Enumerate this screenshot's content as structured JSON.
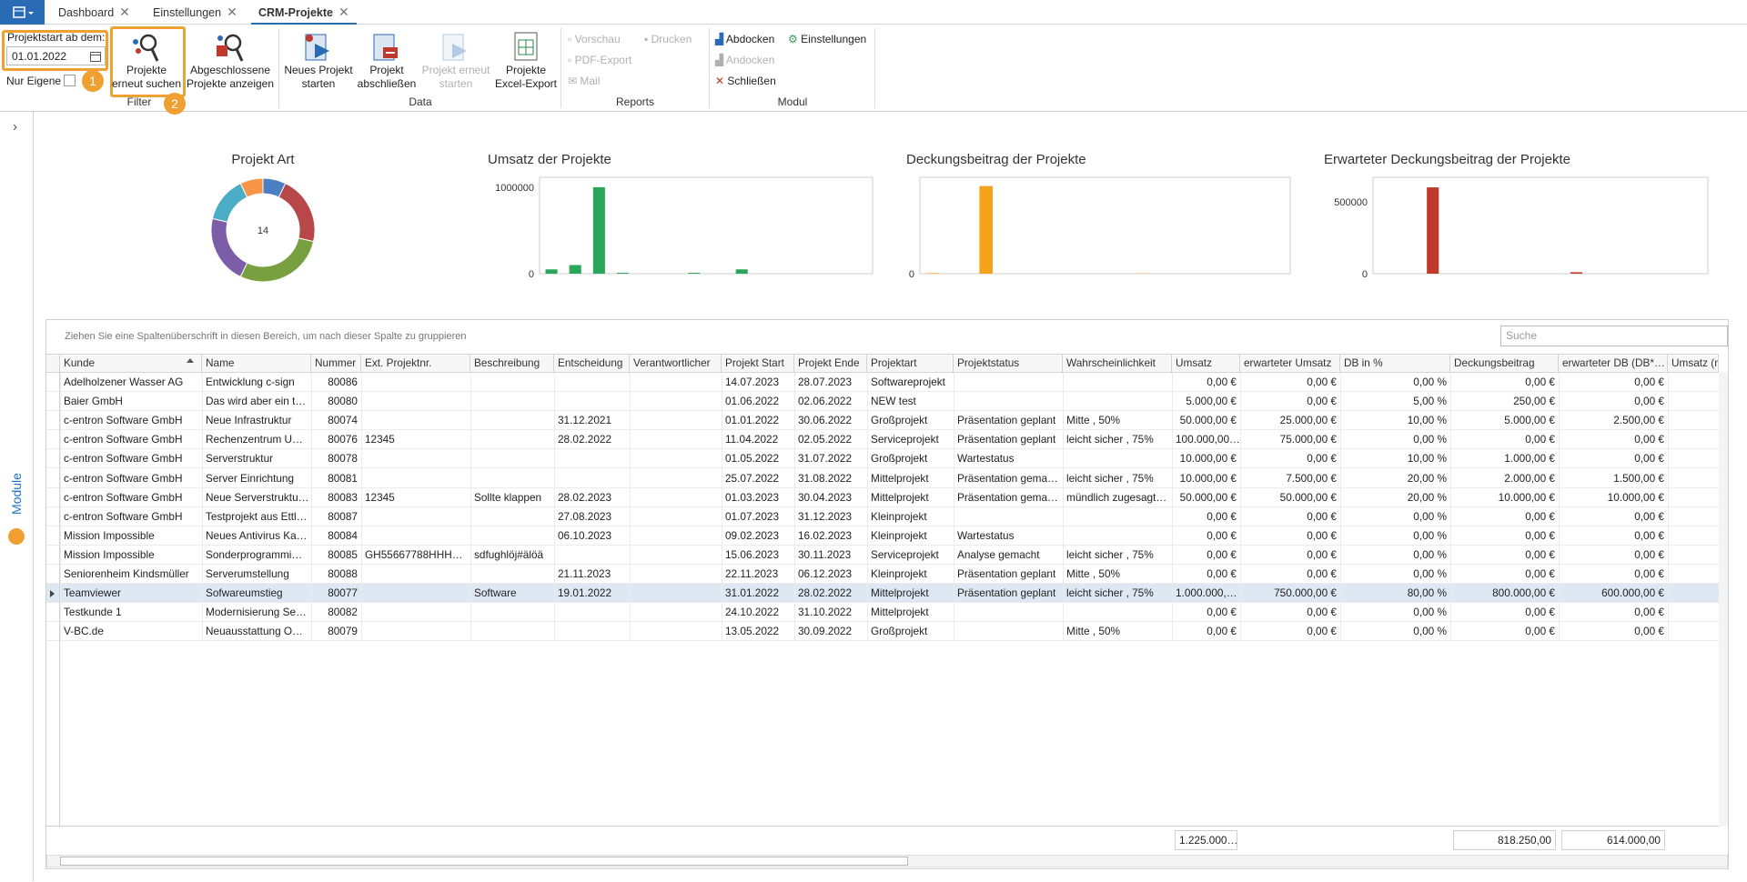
{
  "tabs": [
    "Dashboard",
    "Einstellungen",
    "CRM-Projekte"
  ],
  "active_tab": 2,
  "ribbon": {
    "filter": {
      "title": "Filter",
      "date_label": "Projektstart ab dem:",
      "date": "01.01.2022",
      "only_own": "Nur Eigene",
      "search_button": [
        "Projekte",
        "erneut suchen"
      ],
      "closed_button": [
        "Abgeschlossene",
        "Projekte anzeigen"
      ],
      "callouts": [
        1,
        2
      ]
    },
    "data": {
      "title": "Data",
      "buttons": [
        [
          "Neues Projekt",
          "starten"
        ],
        [
          "Projekt",
          "abschließen"
        ],
        [
          "Projekt erneut",
          "starten"
        ],
        [
          "Projekte",
          "Excel-Export"
        ]
      ]
    },
    "reports": {
      "title": "Reports",
      "items": [
        "Vorschau",
        "Drucken",
        "PDF-Export",
        "Mail"
      ]
    },
    "modul": {
      "title": "Modul",
      "items": [
        "Abdocken",
        "Einstellungen",
        "Andocken",
        "Schließen"
      ]
    }
  },
  "sidebar": {
    "label": "Module"
  },
  "charts": [
    {
      "type": "pie",
      "title": "Projekt Art",
      "center_text": 14,
      "values": [
        1,
        3,
        4,
        3,
        2,
        1
      ],
      "colors": [
        "#4a7fc1",
        "#b8474a",
        "#78a040",
        "#7b5ea7",
        "#4bacc6",
        "#f79646"
      ]
    },
    {
      "type": "bar",
      "title": "Umsatz der Projekte",
      "color": "#2aa55a",
      "values": [
        50000,
        100000,
        1000000,
        10000,
        0,
        0,
        10000,
        0,
        50000,
        0,
        0,
        0,
        0,
        0
      ],
      "ylim": [
        0,
        1115000
      ],
      "yticks": [
        0,
        1000000
      ]
    },
    {
      "type": "bar",
      "title": "Deckungsbeitrag der Projekte",
      "color": "#f5a21b",
      "values": [
        5000,
        0,
        800000,
        0,
        0,
        0,
        0,
        0,
        2500,
        0,
        0,
        0,
        0,
        0
      ],
      "ylim": [
        0,
        880000
      ],
      "yticks": [
        0
      ]
    },
    {
      "type": "bar",
      "title": "Erwarteter Deckungsbeitrag der Projekte",
      "color": "#c0392b",
      "values": [
        0,
        0,
        600000,
        0,
        0,
        0,
        0,
        0,
        10000,
        0,
        0,
        0,
        0,
        0
      ],
      "ylim": [
        0,
        670000
      ],
      "yticks": [
        0,
        500000
      ]
    }
  ],
  "grid": {
    "group_hint": "Ziehen Sie eine Spaltenüberschrift in diesen Bereich, um nach dieser Spalte zu gruppieren",
    "search_placeholder": "Suche",
    "columns": [
      "Kunde",
      "Name",
      "Nummer",
      "Ext. Projektnr.",
      "Beschreibung",
      "Entscheidung",
      "Verantwortlicher",
      "Projekt Start",
      "Projekt Ende",
      "Projektart",
      "Projektstatus",
      "Wahrscheinlichkeit",
      "Umsatz",
      "erwarteter Umsatz",
      "DB in %",
      "Deckungsbeitrag",
      "erwarteter DB (DB*…",
      "Umsatz (n"
    ],
    "selected_row": 11,
    "rows": [
      [
        "Adelholzener Wasser AG",
        "Entwicklung c-sign",
        "80086",
        null,
        null,
        null,
        null,
        "14.07.2023",
        "28.07.2023",
        "Softwareprojekt",
        null,
        null,
        "0,00 €",
        "0,00 €",
        "0,00 %",
        "0,00 €",
        "0,00 €"
      ],
      [
        "Baier GmbH",
        "Das wird aber ein t…",
        "80080",
        null,
        null,
        null,
        null,
        "01.06.2022",
        "02.06.2022",
        "NEW test",
        null,
        null,
        "5.000,00 €",
        "0,00 €",
        "5,00 %",
        "250,00 €",
        "0,00 €"
      ],
      [
        "c-entron Software GmbH",
        "Neue Infrastruktur",
        "80074",
        null,
        null,
        "31.12.2021",
        null,
        "01.01.2022",
        "30.06.2022",
        "Großprojekt",
        "Präsentation geplant",
        "Mitte , 50%",
        "50.000,00 €",
        "25.000,00 €",
        "10,00 %",
        "5.000,00 €",
        "2.500,00 €"
      ],
      [
        "c-entron Software GmbH",
        "Rechenzentrum U…",
        "80076",
        "12345",
        null,
        "28.02.2022",
        null,
        "11.04.2022",
        "02.05.2022",
        "Serviceprojekt",
        "Präsentation geplant",
        "leicht sicher , 75%",
        "100.000,00…",
        "75.000,00 €",
        "0,00 %",
        "0,00 €",
        "0,00 €"
      ],
      [
        "c-entron Software GmbH",
        "Serverstruktur",
        "80078",
        null,
        null,
        null,
        null,
        "01.05.2022",
        "31.07.2022",
        "Großprojekt",
        "Wartestatus",
        null,
        "10.000,00 €",
        "0,00 €",
        "10,00 %",
        "1.000,00 €",
        "0,00 €"
      ],
      [
        "c-entron Software GmbH",
        "Server Einrichtung",
        "80081",
        null,
        null,
        null,
        null,
        "25.07.2022",
        "31.08.2022",
        "Mittelprojekt",
        "Präsentation gema…",
        "leicht sicher , 75%",
        "10.000,00 €",
        "7.500,00 €",
        "20,00 %",
        "2.000,00 €",
        "1.500,00 €"
      ],
      [
        "c-entron Software GmbH",
        "Neue Serverstruktu…",
        "80083",
        "12345",
        "Sollte klappen",
        "28.02.2023",
        null,
        "01.03.2023",
        "30.04.2023",
        "Mittelprojekt",
        "Präsentation gema…",
        "mündlich zugesagt…",
        "50.000,00 €",
        "50.000,00 €",
        "20,00 %",
        "10.000,00 €",
        "10.000,00 €"
      ],
      [
        "c-entron Software GmbH",
        "Testprojekt aus Ettl…",
        "80087",
        null,
        null,
        "27.08.2023",
        null,
        "01.07.2023",
        "31.12.2023",
        "Kleinprojekt",
        null,
        null,
        "0,00 €",
        "0,00 €",
        "0,00 %",
        "0,00 €",
        "0,00 €"
      ],
      [
        "Mission Impossible",
        "Neues Antivirus Ka…",
        "80084",
        null,
        null,
        "06.10.2023",
        null,
        "09.02.2023",
        "16.02.2023",
        "Kleinprojekt",
        "Wartestatus",
        null,
        "0,00 €",
        "0,00 €",
        "0,00 %",
        "0,00 €",
        "0,00 €"
      ],
      [
        "Mission Impossible",
        "Sonderprogrammi…",
        "80085",
        "GH55667788HHH…",
        "sdfughlöj#älöä",
        null,
        null,
        "15.06.2023",
        "30.11.2023",
        "Serviceprojekt",
        "Analyse gemacht",
        "leicht sicher , 75%",
        "0,00 €",
        "0,00 €",
        "0,00 %",
        "0,00 €",
        "0,00 €"
      ],
      [
        "Seniorenheim Kindsmüller",
        "Serverumstellung",
        "80088",
        null,
        null,
        "21.11.2023",
        null,
        "22.11.2023",
        "06.12.2023",
        "Kleinprojekt",
        "Präsentation geplant",
        "Mitte , 50%",
        "0,00 €",
        "0,00 €",
        "0,00 %",
        "0,00 €",
        "0,00 €"
      ],
      [
        "Teamviewer",
        "Sofwareumstieg",
        "80077",
        null,
        "Software",
        "19.01.2022",
        null,
        "31.01.2022",
        "28.02.2022",
        "Mittelprojekt",
        "Präsentation geplant",
        "leicht sicher , 75%",
        "1.000.000,…",
        "750.000,00 €",
        "80,00 %",
        "800.000,00 €",
        "600.000,00 €"
      ],
      [
        "Testkunde 1",
        "Modernisierung Se…",
        "80082",
        null,
        null,
        null,
        null,
        "24.10.2022",
        "31.10.2022",
        "Mittelprojekt",
        null,
        null,
        "0,00 €",
        "0,00 €",
        "0,00 %",
        "0,00 €",
        "0,00 €"
      ],
      [
        "V-BC.de",
        "Neuausstattung O…",
        "80079",
        null,
        null,
        null,
        null,
        "13.05.2022",
        "30.09.2022",
        "Großprojekt",
        null,
        "Mitte , 50%",
        "0,00 €",
        "0,00 €",
        "0,00 %",
        "0,00 €",
        "0,00 €"
      ]
    ],
    "totals": [
      "1.225.000…",
      "818.250,00",
      "614.000,00"
    ]
  }
}
